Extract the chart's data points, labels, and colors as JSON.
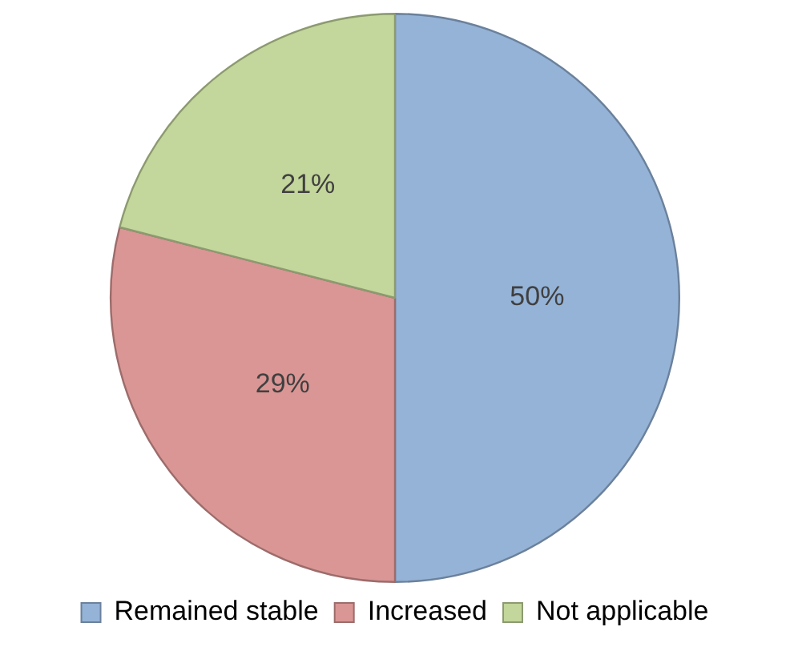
{
  "chart_data": {
    "type": "pie",
    "categories": [
      "Remained stable",
      "Increased",
      "Not applicable"
    ],
    "values": [
      50,
      29,
      21
    ],
    "colors": [
      "#95b3d7",
      "#d99694",
      "#c3d69b"
    ],
    "value_labels": [
      "50%",
      "29%",
      "21%"
    ],
    "legend": "bottom"
  }
}
